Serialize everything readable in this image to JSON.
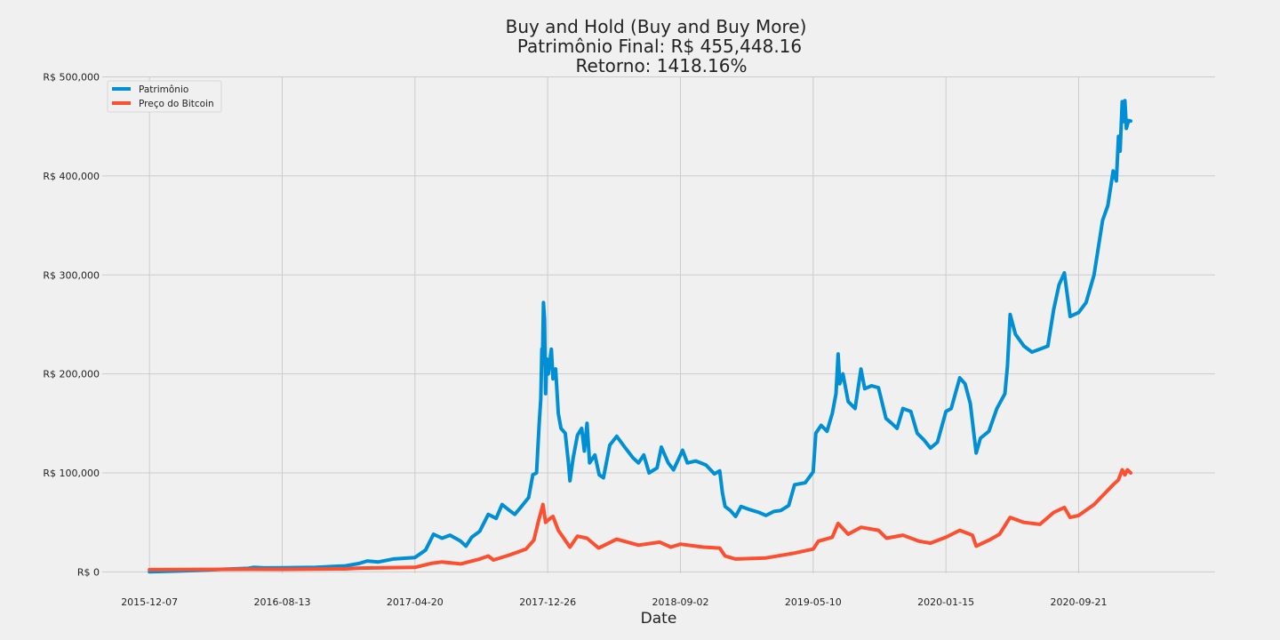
{
  "chart_data": {
    "type": "line",
    "title_lines": [
      "Buy and Hold (Buy and Buy More)",
      "Patrimônio Final: R$ 455,448.16",
      "Retorno: 1418.16%"
    ],
    "xlabel": "Date",
    "ylabel": "",
    "x_ticks": [
      "2015-12-07",
      "2016-08-13",
      "2017-04-20",
      "2017-12-26",
      "2018-09-02",
      "2019-05-10",
      "2020-01-15",
      "2020-09-21"
    ],
    "y_ticks": [
      {
        "value": 0,
        "label": "R$ 0"
      },
      {
        "value": 100000,
        "label": "R$ 100,000"
      },
      {
        "value": 200000,
        "label": "R$ 200,000"
      },
      {
        "value": 300000,
        "label": "R$ 300,000"
      },
      {
        "value": 400000,
        "label": "R$ 400,000"
      },
      {
        "value": 500000,
        "label": "R$ 500,000"
      }
    ],
    "xlim": [
      "2015-09-09",
      "2021-06-05"
    ],
    "ylim": [
      -1500,
      500500
    ],
    "grid": true,
    "legend_position": "top-left",
    "series": [
      {
        "name": "Patrimônio",
        "color": "#008fd5",
        "points": [
          [
            "2015-12-07",
            0
          ],
          [
            "2016-02-01",
            800
          ],
          [
            "2016-03-15",
            1600
          ],
          [
            "2016-05-01",
            2800
          ],
          [
            "2016-06-10",
            3500
          ],
          [
            "2016-06-20",
            4500
          ],
          [
            "2016-07-10",
            4000
          ],
          [
            "2016-08-13",
            4200
          ],
          [
            "2016-10-15",
            4600
          ],
          [
            "2016-12-10",
            6000
          ],
          [
            "2017-01-05",
            8500
          ],
          [
            "2017-01-20",
            11000
          ],
          [
            "2017-02-10",
            10000
          ],
          [
            "2017-03-10",
            13000
          ],
          [
            "2017-04-20",
            14500
          ],
          [
            "2017-05-10",
            22000
          ],
          [
            "2017-05-25",
            38000
          ],
          [
            "2017-06-10",
            34000
          ],
          [
            "2017-06-25",
            37000
          ],
          [
            "2017-07-15",
            31000
          ],
          [
            "2017-07-25",
            26000
          ],
          [
            "2017-08-05",
            35000
          ],
          [
            "2017-08-20",
            41000
          ],
          [
            "2017-09-05",
            58000
          ],
          [
            "2017-09-20",
            54000
          ],
          [
            "2017-10-01",
            68000
          ],
          [
            "2017-10-15",
            62000
          ],
          [
            "2017-10-25",
            58000
          ],
          [
            "2017-11-05",
            65000
          ],
          [
            "2017-11-20",
            75000
          ],
          [
            "2017-11-28",
            98000
          ],
          [
            "2017-12-05",
            100000
          ],
          [
            "2017-12-10",
            150000
          ],
          [
            "2017-12-13",
            175000
          ],
          [
            "2017-12-15",
            225000
          ],
          [
            "2017-12-16",
            210000
          ],
          [
            "2017-12-18",
            272000
          ],
          [
            "2017-12-20",
            255000
          ],
          [
            "2017-12-22",
            180000
          ],
          [
            "2017-12-24",
            215000
          ],
          [
            "2017-12-27",
            200000
          ],
          [
            "2018-01-02",
            225000
          ],
          [
            "2018-01-05",
            195000
          ],
          [
            "2018-01-10",
            205000
          ],
          [
            "2018-01-15",
            160000
          ],
          [
            "2018-01-20",
            145000
          ],
          [
            "2018-01-28",
            140000
          ],
          [
            "2018-02-03",
            110000
          ],
          [
            "2018-02-06",
            92000
          ],
          [
            "2018-02-12",
            115000
          ],
          [
            "2018-02-20",
            138000
          ],
          [
            "2018-02-28",
            145000
          ],
          [
            "2018-03-05",
            122000
          ],
          [
            "2018-03-10",
            150000
          ],
          [
            "2018-03-15",
            110000
          ],
          [
            "2018-03-25",
            118000
          ],
          [
            "2018-04-02",
            98000
          ],
          [
            "2018-04-10",
            95000
          ],
          [
            "2018-04-22",
            128000
          ],
          [
            "2018-05-05",
            137000
          ],
          [
            "2018-05-20",
            126000
          ],
          [
            "2018-06-05",
            115000
          ],
          [
            "2018-06-15",
            110000
          ],
          [
            "2018-06-25",
            118000
          ],
          [
            "2018-07-05",
            100000
          ],
          [
            "2018-07-20",
            105000
          ],
          [
            "2018-07-28",
            126000
          ],
          [
            "2018-08-10",
            110000
          ],
          [
            "2018-08-20",
            103000
          ],
          [
            "2018-09-02",
            118000
          ],
          [
            "2018-09-06",
            123000
          ],
          [
            "2018-09-15",
            110000
          ],
          [
            "2018-10-01",
            112000
          ],
          [
            "2018-10-20",
            108000
          ],
          [
            "2018-11-05",
            99000
          ],
          [
            "2018-11-15",
            102000
          ],
          [
            "2018-11-20",
            80000
          ],
          [
            "2018-11-25",
            66000
          ],
          [
            "2018-12-05",
            62000
          ],
          [
            "2018-12-15",
            56000
          ],
          [
            "2018-12-25",
            66000
          ],
          [
            "2019-01-10",
            63000
          ],
          [
            "2019-01-28",
            60000
          ],
          [
            "2019-02-10",
            57000
          ],
          [
            "2019-02-25",
            61000
          ],
          [
            "2019-03-10",
            62000
          ],
          [
            "2019-03-25",
            67000
          ],
          [
            "2019-04-05",
            88000
          ],
          [
            "2019-04-25",
            90000
          ],
          [
            "2019-05-10",
            101000
          ],
          [
            "2019-05-15",
            140000
          ],
          [
            "2019-05-25",
            148000
          ],
          [
            "2019-06-05",
            142000
          ],
          [
            "2019-06-15",
            160000
          ],
          [
            "2019-06-22",
            180000
          ],
          [
            "2019-06-26",
            220000
          ],
          [
            "2019-06-29",
            190000
          ],
          [
            "2019-07-05",
            200000
          ],
          [
            "2019-07-15",
            172000
          ],
          [
            "2019-07-28",
            165000
          ],
          [
            "2019-08-08",
            205000
          ],
          [
            "2019-08-15",
            185000
          ],
          [
            "2019-08-28",
            188000
          ],
          [
            "2019-09-10",
            186000
          ],
          [
            "2019-09-24",
            155000
          ],
          [
            "2019-10-05",
            150000
          ],
          [
            "2019-10-15",
            145000
          ],
          [
            "2019-10-26",
            165000
          ],
          [
            "2019-11-10",
            162000
          ],
          [
            "2019-11-22",
            140000
          ],
          [
            "2019-12-05",
            133000
          ],
          [
            "2019-12-17",
            125000
          ],
          [
            "2019-12-30",
            131000
          ],
          [
            "2020-01-15",
            162000
          ],
          [
            "2020-01-25",
            165000
          ],
          [
            "2020-02-10",
            196000
          ],
          [
            "2020-02-20",
            190000
          ],
          [
            "2020-03-01",
            170000
          ],
          [
            "2020-03-12",
            120000
          ],
          [
            "2020-03-20",
            135000
          ],
          [
            "2020-04-05",
            142000
          ],
          [
            "2020-04-20",
            165000
          ],
          [
            "2020-05-05",
            180000
          ],
          [
            "2020-05-10",
            208000
          ],
          [
            "2020-05-15",
            260000
          ],
          [
            "2020-05-25",
            240000
          ],
          [
            "2020-06-10",
            228000
          ],
          [
            "2020-06-25",
            222000
          ],
          [
            "2020-07-10",
            225000
          ],
          [
            "2020-07-25",
            228000
          ],
          [
            "2020-08-05",
            265000
          ],
          [
            "2020-08-15",
            290000
          ],
          [
            "2020-08-25",
            302000
          ],
          [
            "2020-09-05",
            258000
          ],
          [
            "2020-09-21",
            262000
          ],
          [
            "2020-10-05",
            272000
          ],
          [
            "2020-10-20",
            300000
          ],
          [
            "2020-11-05",
            355000
          ],
          [
            "2020-11-15",
            370000
          ],
          [
            "2020-11-25",
            405000
          ],
          [
            "2020-12-01",
            395000
          ],
          [
            "2020-12-05",
            440000
          ],
          [
            "2020-12-08",
            425000
          ],
          [
            "2020-12-12",
            475000
          ],
          [
            "2020-12-15",
            455000
          ],
          [
            "2020-12-17",
            476000
          ],
          [
            "2020-12-20",
            448000
          ],
          [
            "2020-12-24",
            456000
          ],
          [
            "2020-12-28",
            455448.16
          ]
        ]
      },
      {
        "name": "Preço do Bitcoin",
        "color": "#fc4f30",
        "points": [
          [
            "2015-12-07",
            2200
          ],
          [
            "2016-06-15",
            2600
          ],
          [
            "2016-08-13",
            2500
          ],
          [
            "2016-12-10",
            3000
          ],
          [
            "2017-01-05",
            3800
          ],
          [
            "2017-04-20",
            4500
          ],
          [
            "2017-05-20",
            8500
          ],
          [
            "2017-06-10",
            10000
          ],
          [
            "2017-07-15",
            8000
          ],
          [
            "2017-08-20",
            13000
          ],
          [
            "2017-09-05",
            16000
          ],
          [
            "2017-09-15",
            12000
          ],
          [
            "2017-10-15",
            17000
          ],
          [
            "2017-11-15",
            23000
          ],
          [
            "2017-11-30",
            32000
          ],
          [
            "2017-12-08",
            50000
          ],
          [
            "2017-12-17",
            68000
          ],
          [
            "2017-12-22",
            50000
          ],
          [
            "2017-12-26",
            52000
          ],
          [
            "2018-01-05",
            56000
          ],
          [
            "2018-01-15",
            42000
          ],
          [
            "2018-02-06",
            25000
          ],
          [
            "2018-02-20",
            36000
          ],
          [
            "2018-03-10",
            34000
          ],
          [
            "2018-04-01",
            24000
          ],
          [
            "2018-05-05",
            33000
          ],
          [
            "2018-06-15",
            27000
          ],
          [
            "2018-07-25",
            30000
          ],
          [
            "2018-08-15",
            25000
          ],
          [
            "2018-09-02",
            28000
          ],
          [
            "2018-10-15",
            25000
          ],
          [
            "2018-11-15",
            24000
          ],
          [
            "2018-11-25",
            16000
          ],
          [
            "2018-12-15",
            13000
          ],
          [
            "2019-02-10",
            14000
          ],
          [
            "2019-04-05",
            19000
          ],
          [
            "2019-05-10",
            23000
          ],
          [
            "2019-05-20",
            31000
          ],
          [
            "2019-06-15",
            35000
          ],
          [
            "2019-06-26",
            49000
          ],
          [
            "2019-07-15",
            38000
          ],
          [
            "2019-08-08",
            45000
          ],
          [
            "2019-09-10",
            42000
          ],
          [
            "2019-09-25",
            34000
          ],
          [
            "2019-10-26",
            37000
          ],
          [
            "2019-11-25",
            31000
          ],
          [
            "2019-12-17",
            29000
          ],
          [
            "2020-01-15",
            35000
          ],
          [
            "2020-02-10",
            42000
          ],
          [
            "2020-03-05",
            37000
          ],
          [
            "2020-03-12",
            26000
          ],
          [
            "2020-04-05",
            32000
          ],
          [
            "2020-04-25",
            38000
          ],
          [
            "2020-05-15",
            55000
          ],
          [
            "2020-06-10",
            50000
          ],
          [
            "2020-07-10",
            48000
          ],
          [
            "2020-08-05",
            60000
          ],
          [
            "2020-08-25",
            65000
          ],
          [
            "2020-09-05",
            55000
          ],
          [
            "2020-09-21",
            57000
          ],
          [
            "2020-10-20",
            68000
          ],
          [
            "2020-11-25",
            88000
          ],
          [
            "2020-12-05",
            93000
          ],
          [
            "2020-12-12",
            103000
          ],
          [
            "2020-12-17",
            98000
          ],
          [
            "2020-12-22",
            103000
          ],
          [
            "2020-12-28",
            100000
          ]
        ]
      }
    ]
  }
}
